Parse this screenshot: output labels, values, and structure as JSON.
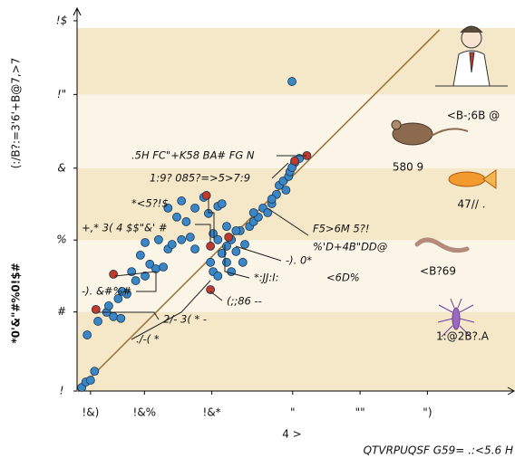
{
  "chart_data": {
    "type": "scatter",
    "y_label": [
      "(:/B?:=3'6'+B@7,>7",
      "*0'&\"#%0!$#"
    ],
    "x_label": "4 >",
    "footer": "QTVRPUQSF G59= .:<5.6 H",
    "xlim": [
      0,
      6.5
    ],
    "ylim": [
      0,
      10.5
    ],
    "xticks": [
      {
        "value": 0.2,
        "label": "!&)"
      },
      {
        "value": 1.0,
        "label": "!&%"
      },
      {
        "value": 2.0,
        "label": "!&*"
      },
      {
        "value": 3.2,
        "label": "\""
      },
      {
        "value": 4.2,
        "label": "\"\""
      },
      {
        "value": 5.2,
        "label": "\")"
      }
    ],
    "yticks": [
      {
        "value": 0,
        "label": "!"
      },
      {
        "value": 2.2,
        "label": "#"
      },
      {
        "value": 4.2,
        "label": "%"
      },
      {
        "value": 6.2,
        "label": "&"
      },
      {
        "value": 8.25,
        "label": "!\""
      },
      {
        "value": 10.3,
        "label": "!$"
      }
    ],
    "band_colors": [
      "#f4e8c8",
      "#fbf5e7"
    ],
    "trend": {
      "x": [
        0,
        5.38
      ],
      "y": [
        0,
        10.05
      ],
      "color": "#a0783c"
    },
    "series": [
      {
        "color": "#3a87c8",
        "x": [
          0.07,
          0.13,
          0.2,
          0.26,
          0.15,
          0.31,
          0.44,
          0.54,
          0.65,
          0.47,
          0.61,
          0.67,
          0.74,
          0.81,
          0.87,
          1.01,
          1.08,
          1.17,
          1.28,
          1.35,
          1.41,
          1.21,
          1.01,
          0.94,
          1.55,
          1.68,
          1.75,
          1.62,
          1.48,
          1.35,
          1.55,
          1.75,
          1.88,
          2.02,
          2.09,
          2.15,
          2.22,
          2.29,
          2.36,
          2.49,
          2.42,
          2.56,
          2.62,
          2.69,
          2.76,
          2.83,
          2.89,
          2.96,
          3.0,
          3.06,
          3.1,
          3.14,
          3.16,
          3.23,
          3.3,
          3.19,
          2.89,
          2.62,
          2.36,
          2.22,
          2.09,
          1.95,
          2.02,
          2.09,
          1.98,
          2.29,
          2.22,
          2.46,
          2.15,
          3.19
        ],
        "values": [
          0.1,
          0.25,
          0.3,
          0.55,
          1.56,
          1.94,
          2.19,
          2.07,
          2.02,
          2.37,
          2.57,
          2.77,
          2.7,
          3.32,
          3.07,
          3.2,
          3.53,
          3.4,
          3.45,
          3.95,
          4.08,
          4.21,
          4.13,
          3.78,
          4.21,
          4.28,
          3.95,
          4.71,
          4.84,
          5.09,
          5.29,
          5.09,
          5.39,
          4.38,
          4.21,
          3.83,
          4.03,
          4.21,
          3.88,
          4.08,
          4.46,
          4.58,
          4.71,
          4.84,
          5.09,
          4.96,
          5.21,
          5.47,
          5.72,
          5.84,
          5.59,
          5.97,
          6.1,
          6.35,
          6.47,
          6.22,
          5.34,
          4.96,
          4.46,
          4.58,
          5.14,
          4.94,
          3.32,
          3.2,
          3.58,
          3.32,
          3.58,
          3.58,
          5.21,
          8.61
        ]
      },
      {
        "color": "#c0392b",
        "x": [
          0.28,
          0.54,
          1.92,
          1.98,
          2.25,
          1.98,
          3.41,
          3.23
        ],
        "values": [
          2.27,
          3.25,
          5.44,
          4.03,
          4.28,
          2.82,
          6.55,
          6.4
        ]
      }
    ],
    "annotations": [
      ".5H FC\"+K58 BA# FG  N",
      "1:9? 085?=>5>7:9",
      "*<5?!$",
      "+,*   3( 4 $$\"&' #",
      "F5>6M 5?!",
      "%'D+4B\"DD@",
      "-). 0*",
      "*:JJ:I:",
      "<6D%",
      "-). &#%#",
      "(;;86 --",
      "2/- 3(  *   -",
      "./-(   *"
    ],
    "icon_labels": [
      "<B-;6B  @",
      "580   9",
      "47// .",
      "<B?69",
      "1:@2B?.A"
    ]
  }
}
